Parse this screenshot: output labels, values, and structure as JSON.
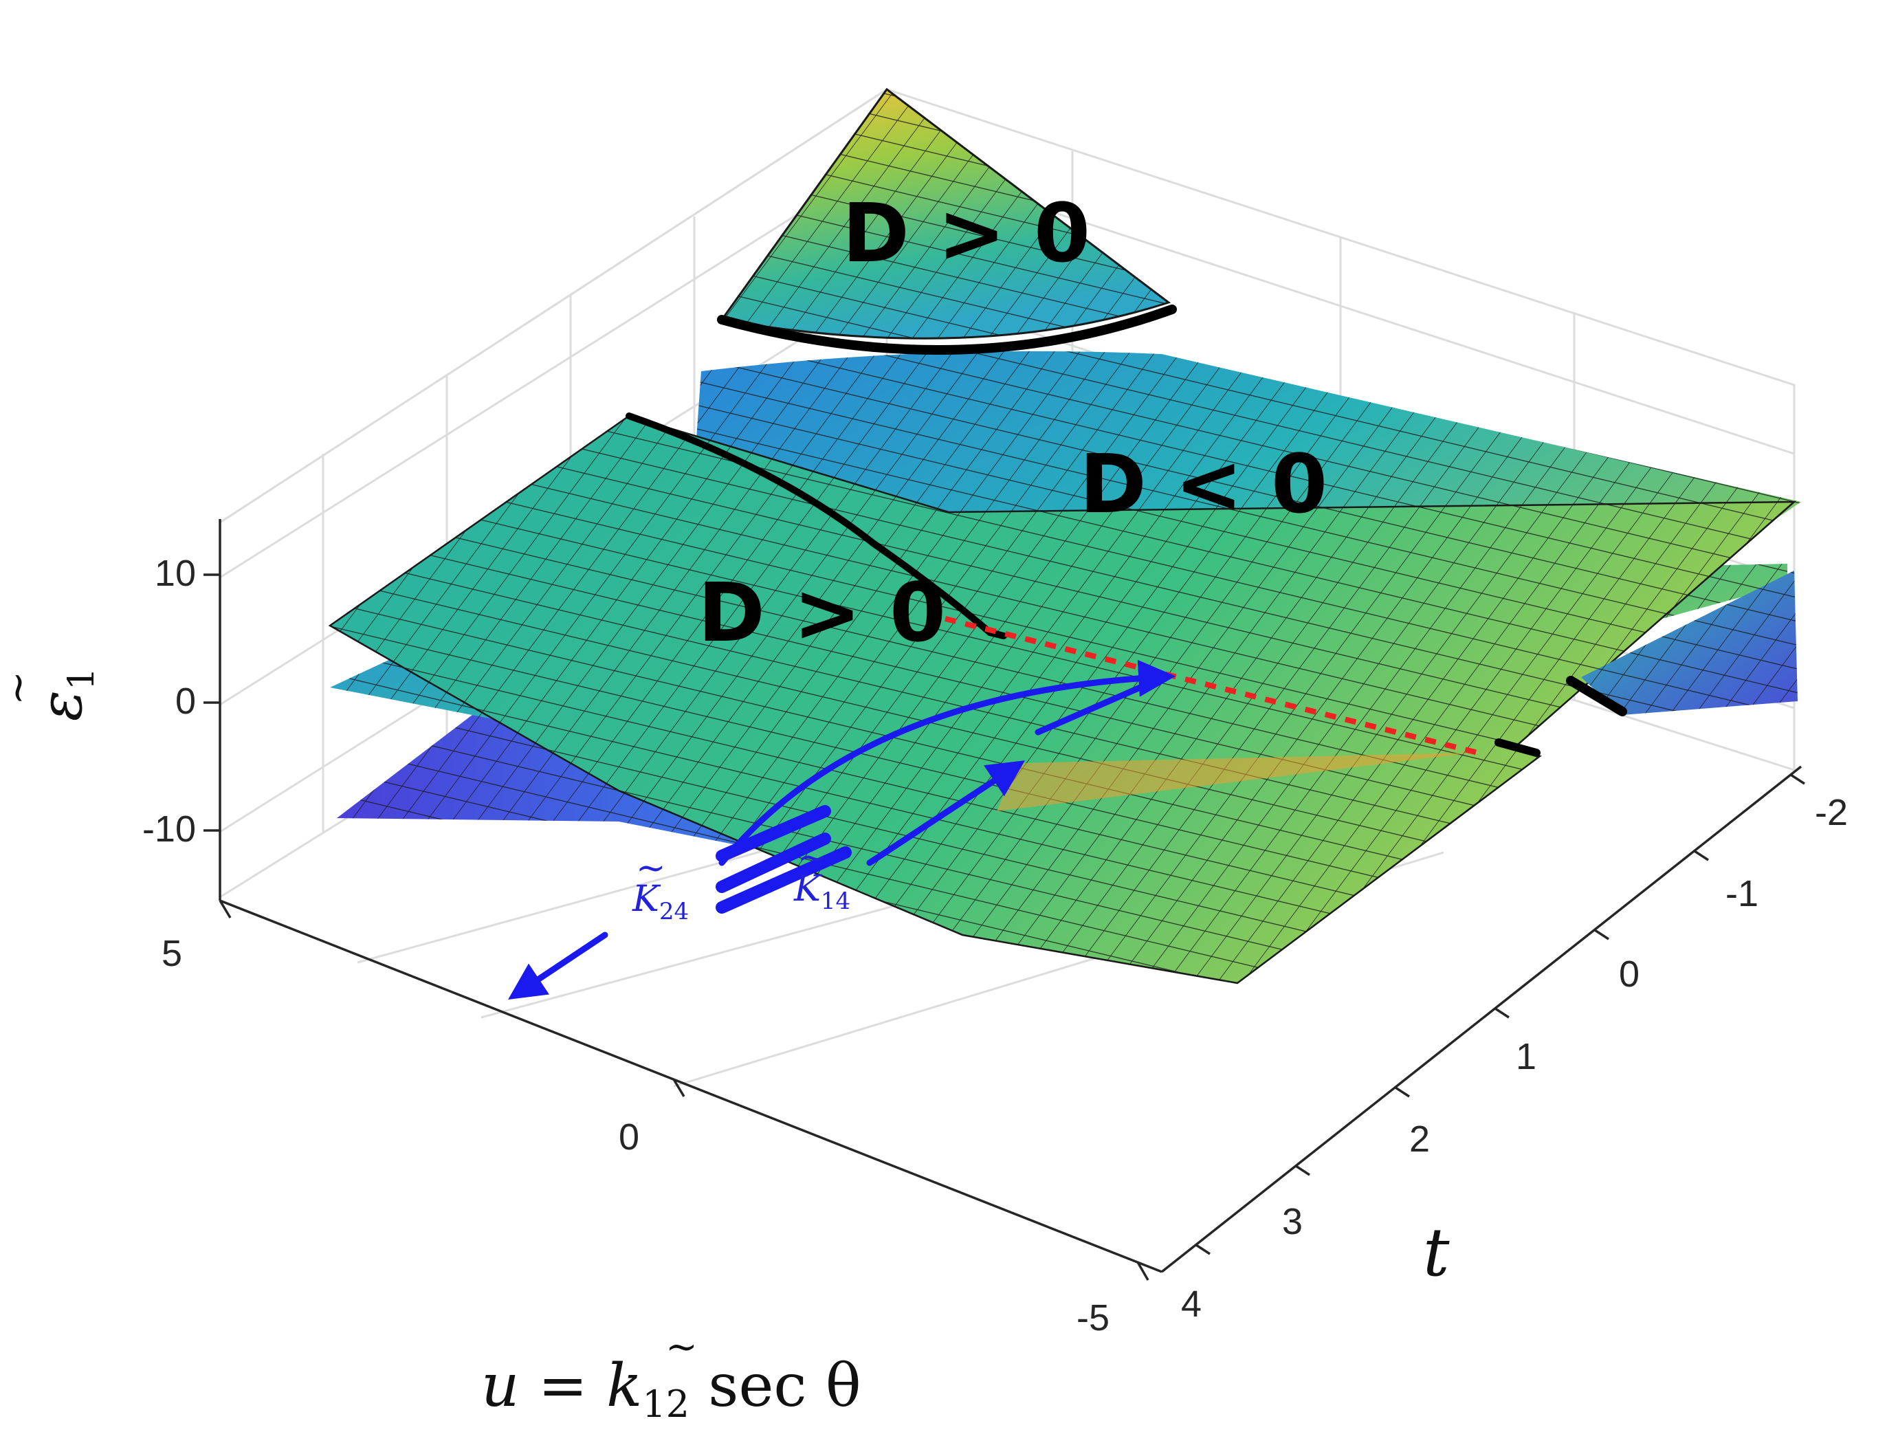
{
  "chart_data": {
    "type": "surface",
    "zlabel_main": "ε",
    "zlabel_sub": "1",
    "xlabel_main": "u = ",
    "xlabel_k": "k",
    "xlabel_sub": "12",
    "xlabel_rest": " sec θ",
    "tlabel": "t",
    "u_ticks": [
      "5",
      "0",
      "-5"
    ],
    "t_ticks": [
      "-2",
      "-1",
      "0",
      "1",
      "2",
      "3",
      "4"
    ],
    "z_ticks": [
      "10",
      "0",
      "-10"
    ],
    "u_range": [
      -5,
      5
    ],
    "t_range": [
      -2,
      4
    ],
    "z_range": [
      -15,
      15
    ],
    "grid": "on",
    "regions": [
      {
        "id": "upper",
        "label": "D > 0"
      },
      {
        "id": "right",
        "label": "D < 0"
      },
      {
        "id": "left",
        "label": "D > 0"
      }
    ],
    "arrow_labels": [
      {
        "main": "K",
        "sub": "24"
      },
      {
        "main": "K",
        "sub": "14"
      }
    ],
    "colormap": "parula",
    "colors": {
      "boundary_curve": "#000000",
      "degeneracy_line": "#ee2222",
      "arrows": "#1a1aee",
      "grid": "#dcdcdc",
      "axes": "#262626"
    }
  }
}
